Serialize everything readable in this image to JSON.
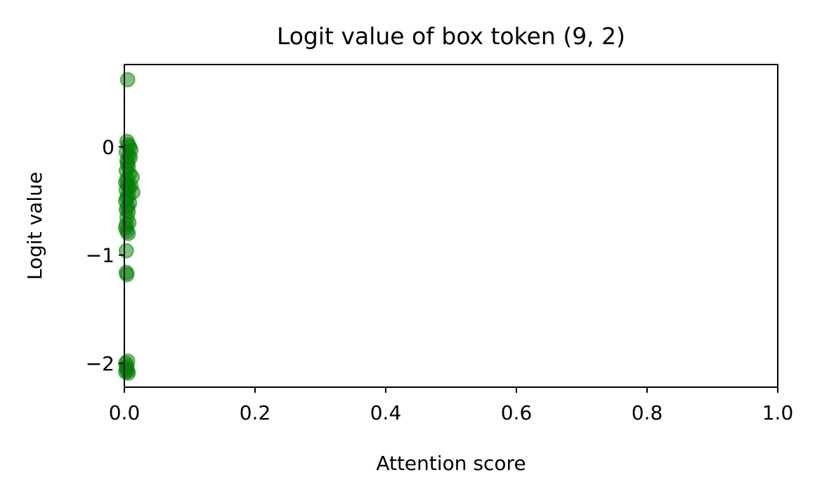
{
  "chart_data": {
    "type": "scatter",
    "title": "Logit value of box token (9, 2)",
    "xlabel": "Attention score",
    "ylabel": "Logit value",
    "xlim": [
      0.0,
      1.0
    ],
    "ylim": [
      -2.22,
      0.76
    ],
    "xticks": [
      0.0,
      0.2,
      0.4,
      0.6,
      0.8,
      1.0
    ],
    "xtick_labels": [
      "0.0",
      "0.2",
      "0.4",
      "0.6",
      "0.8",
      "1.0"
    ],
    "yticks": [
      -2,
      -1,
      0
    ],
    "ytick_labels": [
      "−2",
      "−1",
      "0"
    ],
    "grid": false,
    "marker_color": "#008000",
    "series": [
      {
        "x": [
          0.005,
          0.004,
          0.006,
          0.008,
          0.01,
          0.003,
          0.007,
          0.009,
          0.004,
          0.005,
          0.006,
          0.003,
          0.008,
          0.012,
          0.004,
          0.002,
          0.005,
          0.007,
          0.01,
          0.003,
          0.013,
          0.006,
          0.004,
          0.002,
          0.008,
          0.005,
          0.003,
          0.006,
          0.004,
          0.007,
          0.003,
          0.002,
          0.004,
          0.006,
          0.003,
          0.003,
          0.004,
          0.005,
          0.002,
          0.004,
          0.003,
          0.005,
          0.002,
          0.006
        ],
        "y": [
          0.62,
          0.05,
          0.02,
          0.0,
          -0.03,
          -0.05,
          -0.08,
          -0.1,
          -0.13,
          -0.15,
          -0.18,
          -0.22,
          -0.25,
          -0.28,
          -0.3,
          -0.33,
          -0.35,
          -0.38,
          -0.36,
          -0.4,
          -0.42,
          -0.45,
          -0.47,
          -0.5,
          -0.52,
          -0.55,
          -0.58,
          -0.6,
          -0.65,
          -0.7,
          -0.72,
          -0.75,
          -0.78,
          -0.8,
          -0.96,
          -1.16,
          -1.18,
          -1.98,
          -2.0,
          -2.03,
          -2.05,
          -2.07,
          -2.08,
          -2.09
        ]
      }
    ]
  }
}
